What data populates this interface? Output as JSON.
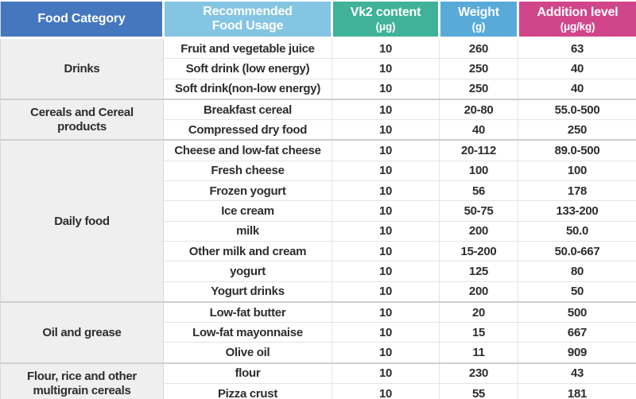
{
  "table": {
    "headers": [
      {
        "id": "food-category",
        "label": "Food Category",
        "unit": "",
        "color": "#4577be"
      },
      {
        "id": "recommended-food-usage",
        "label": "Recommended\nFood Usage",
        "unit": "",
        "color": "#84c5e3"
      },
      {
        "id": "vk2-content",
        "label": "Vk2 content",
        "unit": "(μg)",
        "color": "#3fb299"
      },
      {
        "id": "weight",
        "label": "Weight",
        "unit": "(g)",
        "color": "#58abd9"
      },
      {
        "id": "addition-level",
        "label": "Addition level",
        "unit": "(μg/kg)",
        "color": "#d1468b"
      }
    ],
    "groups": [
      {
        "category": "Drinks",
        "rows": [
          {
            "usage": "Fruit and vegetable juice",
            "vk2": "10",
            "weight": "260",
            "addition": "63"
          },
          {
            "usage": "Soft drink (low energy)",
            "vk2": "10",
            "weight": "250",
            "addition": "40"
          },
          {
            "usage": "Soft drink(non-low energy)",
            "vk2": "10",
            "weight": "250",
            "addition": "40"
          }
        ]
      },
      {
        "category": "Cereals and Cereal products",
        "rows": [
          {
            "usage": "Breakfast cereal",
            "vk2": "10",
            "weight": "20-80",
            "addition": "55.0-500"
          },
          {
            "usage": "Compressed dry food",
            "vk2": "10",
            "weight": "40",
            "addition": "250"
          }
        ]
      },
      {
        "category": "Daily food",
        "rows": [
          {
            "usage": "Cheese and low-fat cheese",
            "vk2": "10",
            "weight": "20-112",
            "addition": "89.0-500"
          },
          {
            "usage": "Fresh cheese",
            "vk2": "10",
            "weight": "100",
            "addition": "100"
          },
          {
            "usage": "Frozen yogurt",
            "vk2": "10",
            "weight": "56",
            "addition": "178"
          },
          {
            "usage": "Ice cream",
            "vk2": "10",
            "weight": "50-75",
            "addition": "133-200"
          },
          {
            "usage": "milk",
            "vk2": "10",
            "weight": "200",
            "addition": "50.0"
          },
          {
            "usage": "Other milk and cream",
            "vk2": "10",
            "weight": "15-200",
            "addition": "50.0-667"
          },
          {
            "usage": "yogurt",
            "vk2": "10",
            "weight": "125",
            "addition": "80"
          },
          {
            "usage": "Yogurt drinks",
            "vk2": "10",
            "weight": "200",
            "addition": "50"
          }
        ]
      },
      {
        "category": "Oil and grease",
        "rows": [
          {
            "usage": "Low-fat butter",
            "vk2": "10",
            "weight": "20",
            "addition": "500"
          },
          {
            "usage": "Low-fat mayonnaise",
            "vk2": "10",
            "weight": "15",
            "addition": "667"
          },
          {
            "usage": "Olive oil",
            "vk2": "10",
            "weight": "11",
            "addition": "909"
          }
        ]
      },
      {
        "category": "Flour, rice and other multigrain cereals",
        "rows": [
          {
            "usage": "flour",
            "vk2": "10",
            "weight": "230",
            "addition": "43"
          },
          {
            "usage": "Pizza crust",
            "vk2": "10",
            "weight": "55",
            "addition": "181"
          }
        ]
      }
    ]
  },
  "chart_data": {
    "type": "table",
    "columns": [
      "Food Category",
      "Recommended Food Usage",
      "Vk2 content (μg)",
      "Weight (g)",
      "Addition level (μg/kg)"
    ],
    "rows": [
      [
        "Drinks",
        "Fruit and vegetable juice",
        "10",
        "260",
        "63"
      ],
      [
        "Drinks",
        "Soft drink (low energy)",
        "10",
        "250",
        "40"
      ],
      [
        "Drinks",
        "Soft drink(non-low energy)",
        "10",
        "250",
        "40"
      ],
      [
        "Cereals and Cereal products",
        "Breakfast cereal",
        "10",
        "20-80",
        "55.0-500"
      ],
      [
        "Cereals and Cereal products",
        "Compressed dry food",
        "10",
        "40",
        "250"
      ],
      [
        "Daily food",
        "Cheese and low-fat cheese",
        "10",
        "20-112",
        "89.0-500"
      ],
      [
        "Daily food",
        "Fresh cheese",
        "10",
        "100",
        "100"
      ],
      [
        "Daily food",
        "Frozen yogurt",
        "10",
        "56",
        "178"
      ],
      [
        "Daily food",
        "Ice cream",
        "10",
        "50-75",
        "133-200"
      ],
      [
        "Daily food",
        "milk",
        "10",
        "200",
        "50.0"
      ],
      [
        "Daily food",
        "Other milk and cream",
        "10",
        "15-200",
        "50.0-667"
      ],
      [
        "Daily food",
        "yogurt",
        "10",
        "125",
        "80"
      ],
      [
        "Daily food",
        "Yogurt drinks",
        "10",
        "200",
        "50"
      ],
      [
        "Oil and grease",
        "Low-fat butter",
        "10",
        "20",
        "500"
      ],
      [
        "Oil and grease",
        "Low-fat mayonnaise",
        "10",
        "15",
        "667"
      ],
      [
        "Oil and grease",
        "Olive oil",
        "10",
        "11",
        "909"
      ],
      [
        "Flour, rice and other multigrain cereals",
        "flour",
        "10",
        "230",
        "43"
      ],
      [
        "Flour, rice and other multigrain cereals",
        "Pizza crust",
        "10",
        "55",
        "181"
      ]
    ],
    "header_colors": [
      "#4577be",
      "#84c5e3",
      "#3fb299",
      "#58abd9",
      "#d1468b"
    ]
  }
}
